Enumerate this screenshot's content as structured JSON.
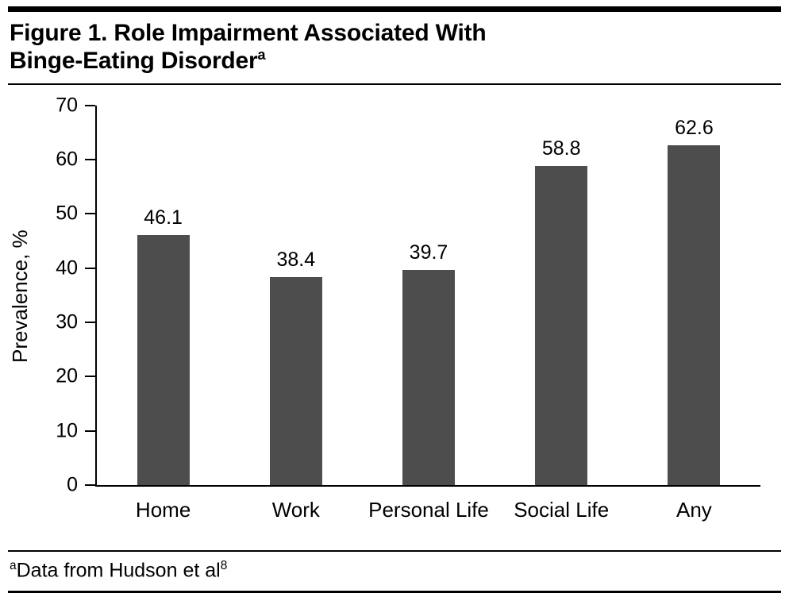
{
  "header": {
    "title_line1": "Figure 1. Role Impairment Associated With",
    "title_line2": "Binge-Eating Disorder",
    "title_superscript": "a"
  },
  "chart_data": {
    "type": "bar",
    "title": "Figure 1. Role Impairment Associated With Binge-Eating Disorder",
    "categories": [
      "Home",
      "Work",
      "Personal Life",
      "Social Life",
      "Any"
    ],
    "values": [
      46.1,
      38.4,
      39.7,
      58.8,
      62.6
    ],
    "value_labels": [
      "46.1",
      "38.4",
      "39.7",
      "58.8",
      "62.6"
    ],
    "xlabel": "",
    "ylabel": "Prevalence, %",
    "ylim": [
      0,
      70
    ],
    "yticks": [
      0,
      10,
      20,
      30,
      40,
      50,
      60,
      70
    ],
    "bar_color": "#4d4d4d",
    "axis_color": "#000000",
    "grid": false,
    "legend": false
  },
  "footnote": {
    "marker": "a",
    "text": "Data from Hudson et al",
    "reference": "8"
  }
}
